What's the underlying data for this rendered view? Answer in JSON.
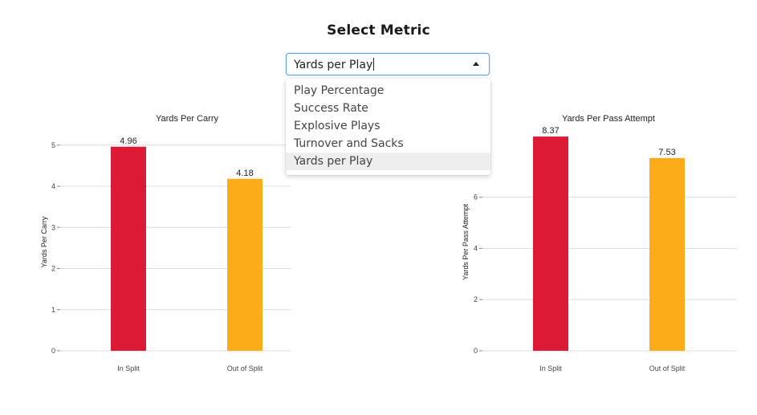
{
  "header": {
    "title": "Select Metric"
  },
  "metric_select": {
    "value": "Yards per Play",
    "options": [
      "Play Percentage",
      "Success Rate",
      "Explosive Plays",
      "Turnover and Sacks",
      "Yards per Play"
    ],
    "selected_index": 4
  },
  "chart_data": [
    {
      "type": "bar",
      "title": "Yards Per Carry",
      "xlabel": "",
      "ylabel": "Yards Per Carry",
      "categories": [
        "In Split",
        "Out of Split"
      ],
      "values": [
        4.96,
        4.18
      ],
      "value_labels": [
        "4.96",
        "4.18"
      ],
      "colors": [
        "#dc1a35",
        "#fdac19"
      ],
      "ylim": [
        0,
        5.6
      ],
      "yticks": [
        0,
        1,
        2,
        3,
        4,
        5
      ],
      "grid": true
    },
    {
      "type": "bar",
      "title": "Yards Per Pass Attempt",
      "xlabel": "",
      "ylabel": "Yards Per Pass Attempt",
      "categories": [
        "In Split",
        "Out of Split"
      ],
      "values": [
        8.37,
        7.53
      ],
      "value_labels": [
        "8.37",
        "7.53"
      ],
      "colors": [
        "#dc1a35",
        "#fdac19"
      ],
      "ylim": [
        0,
        9.0
      ],
      "yticks": [
        0,
        2,
        4,
        6
      ],
      "grid": true
    }
  ]
}
